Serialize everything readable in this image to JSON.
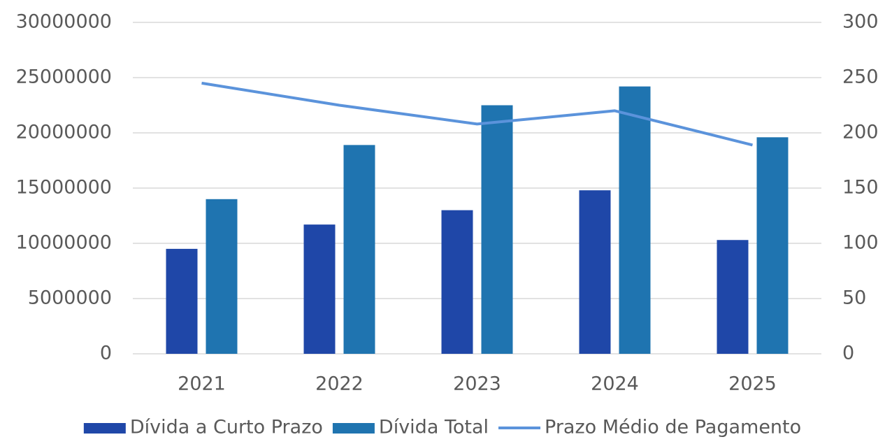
{
  "chart_data": {
    "type": "bar",
    "categories": [
      "2021",
      "2022",
      "2023",
      "2024",
      "2025"
    ],
    "series": [
      {
        "name": "Dívida a Curto Prazo",
        "color": "#1f47a8",
        "values": [
          9500000,
          11700000,
          13000000,
          14800000,
          10300000
        ]
      },
      {
        "name": "Dívida Total",
        "color": "#1f74b0",
        "values": [
          14000000,
          18900000,
          22500000,
          24200000,
          19600000
        ]
      },
      {
        "name": "Prazo Médio de Pagamento",
        "color": "#5b93db",
        "type": "line",
        "axis": "y2",
        "values": [
          245,
          225,
          208,
          220,
          189
        ]
      }
    ],
    "ylim": [
      0,
      30000000
    ],
    "yticks": [
      0,
      5000000,
      10000000,
      15000000,
      20000000,
      25000000,
      30000000
    ],
    "y2lim": [
      0,
      300
    ],
    "y2ticks": [
      0,
      50,
      100,
      150,
      200,
      250,
      300
    ],
    "grid": true,
    "legend": "bottom"
  }
}
